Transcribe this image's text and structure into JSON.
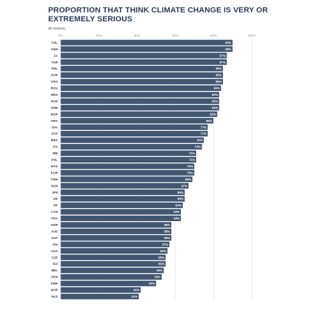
{
  "title": "PROPORTION THAT THINK CLIMATE CHANGE IS VERY OR EXTREMELY SERIOUS",
  "subtitle": "All markets",
  "colors": {
    "bar": "#42566f",
    "bar_edge": "#ffffff",
    "grid": "#d9dce1",
    "title": "#2b3a55"
  },
  "chart_data": {
    "type": "bar",
    "orientation": "horizontal",
    "title": "PROPORTION THAT THINK CLIMATE CHANGE IS VERY OR EXTREMELY SERIOUS",
    "subtitle": "All markets",
    "xlim": [
      0,
      100
    ],
    "ticks": [
      "0%",
      "20%",
      "40%",
      "60%",
      "80%",
      "100%"
    ],
    "grid": true,
    "value_format": "percent",
    "categories": [
      "CHL",
      "KEN",
      "ZA",
      "TUR",
      "PHL",
      "POR",
      "CRO",
      "ROU",
      "MEX",
      "HUN",
      "GRE",
      "BGR",
      "ARG",
      "SPA",
      "SVK",
      "BRA",
      "ITA",
      "IRE",
      "POL",
      "MYS",
      "KOR",
      "TWN",
      "SGN",
      "JPN",
      "UK",
      "HK",
      "CAN",
      "FRA",
      "GER",
      "AUS",
      "AUT",
      "FIN",
      "USA",
      "CZE",
      "SUI",
      "BEL",
      "DEN",
      "SWE",
      "NOR",
      "NLD"
    ],
    "values": [
      90,
      90,
      87,
      87,
      85,
      85,
      85,
      84,
      83,
      83,
      83,
      82,
      80,
      77,
      77,
      75,
      74,
      71,
      71,
      70,
      70,
      69,
      67,
      65,
      65,
      64,
      63,
      63,
      58,
      58,
      58,
      57,
      56,
      55,
      55,
      54,
      53,
      50,
      42,
      41
    ]
  }
}
